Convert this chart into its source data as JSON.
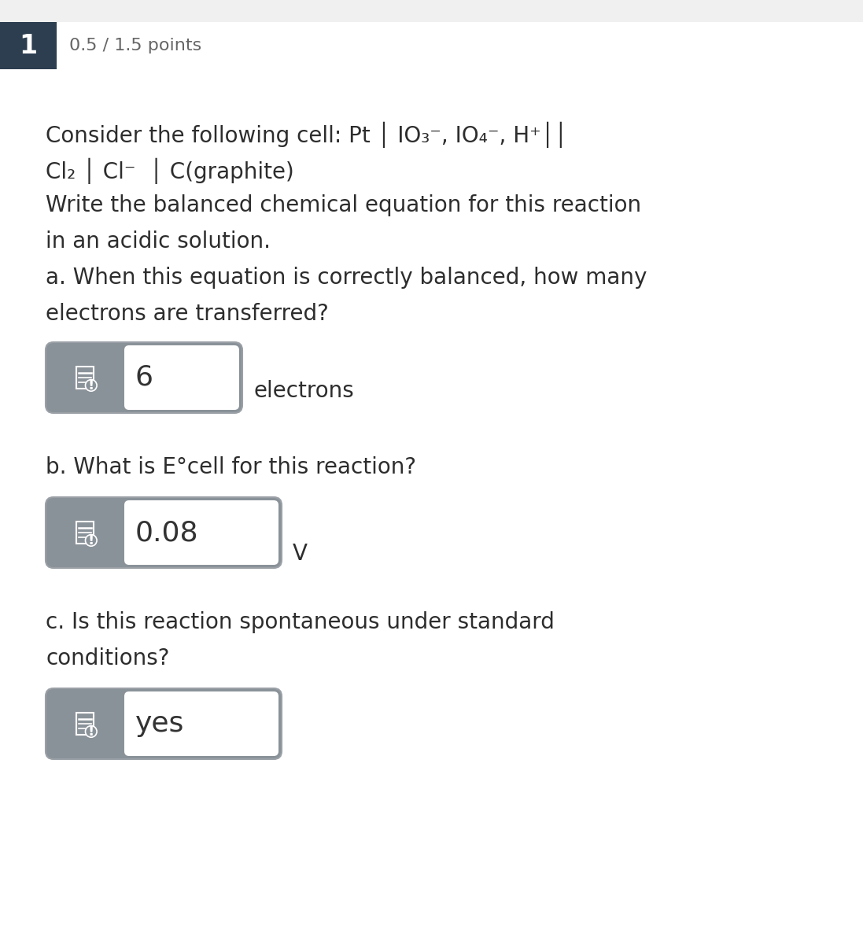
{
  "bg_color": "#ffffff",
  "white": "#ffffff",
  "dark_header": "#2c3e50",
  "gray_box": "#8a9299",
  "light_gray_border": "#9aa0a6",
  "top_bar_color": "#f0f0f0",
  "number_label": "1",
  "points_text": "0.5 / 1.5 points",
  "question_line1": "Consider the following cell: Pt │ IO₃⁻, IO₄⁻, H⁺││",
  "question_line2": "Cl₂ │ Cl⁻  │ C(graphite)",
  "question_line3": "Write the balanced chemical equation for this reaction",
  "question_line4": "in an acidic solution.",
  "part_a_label": "a. When this equation is correctly balanced, how many",
  "part_a_label2": "electrons are transferred?",
  "answer_a": "6",
  "unit_a": "electrons",
  "part_b_label": "b. What is E°cell for this reaction?",
  "answer_b": "0.08",
  "unit_b": "V",
  "part_c_label": "c. Is this reaction spontaneous under standard",
  "part_c_label2": "conditions?",
  "answer_c": "yes",
  "font_size_main": 20,
  "font_size_points": 16,
  "font_size_answer": 22,
  "font_family": "DejaVu Sans"
}
